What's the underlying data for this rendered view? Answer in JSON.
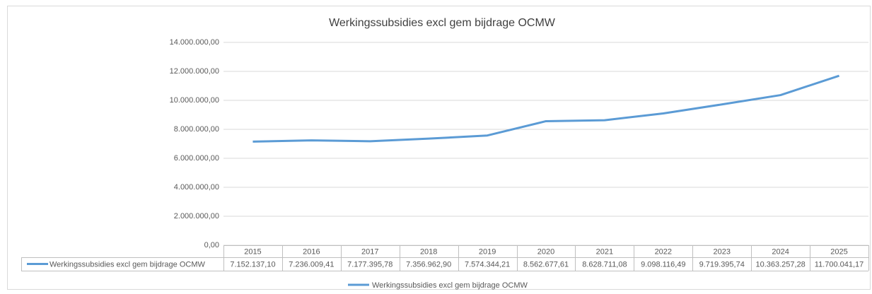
{
  "chart_data": {
    "type": "line",
    "title": "Werkingssubsidies excl gem bijdrage OCMW",
    "categories": [
      "2015",
      "2016",
      "2017",
      "2018",
      "2019",
      "2020",
      "2021",
      "2022",
      "2023",
      "2024",
      "2025"
    ],
    "series": [
      {
        "name": "Werkingssubsidies excl gem bijdrage OCMW",
        "color": "#5b9bd5",
        "values": [
          7152137.1,
          7236009.41,
          7177395.78,
          7356962.9,
          7574344.21,
          8562677.61,
          8628711.08,
          9098116.49,
          9719395.74,
          10363257.28,
          11700041.17
        ],
        "value_labels": [
          "7.152.137,10",
          "7.236.009,41",
          "7.177.395,78",
          "7.356.962,90",
          "7.574.344,21",
          "8.562.677,61",
          "8.628.711,08",
          "9.098.116,49",
          "9.719.395,74",
          "10.363.257,28",
          "11.700.041,17"
        ]
      }
    ],
    "ylim": [
      0,
      14000000
    ],
    "yticks": [
      {
        "value": 0,
        "label": "0,00"
      },
      {
        "value": 2000000,
        "label": "2.000.000,00"
      },
      {
        "value": 4000000,
        "label": "4.000.000,00"
      },
      {
        "value": 6000000,
        "label": "6.000.000,00"
      },
      {
        "value": 8000000,
        "label": "8.000.000,00"
      },
      {
        "value": 10000000,
        "label": "10.000.000,00"
      },
      {
        "value": 12000000,
        "label": "12.000.000,00"
      },
      {
        "value": 14000000,
        "label": "14.000.000,00"
      }
    ],
    "grid": true,
    "legend": "bottom",
    "data_table": true
  }
}
